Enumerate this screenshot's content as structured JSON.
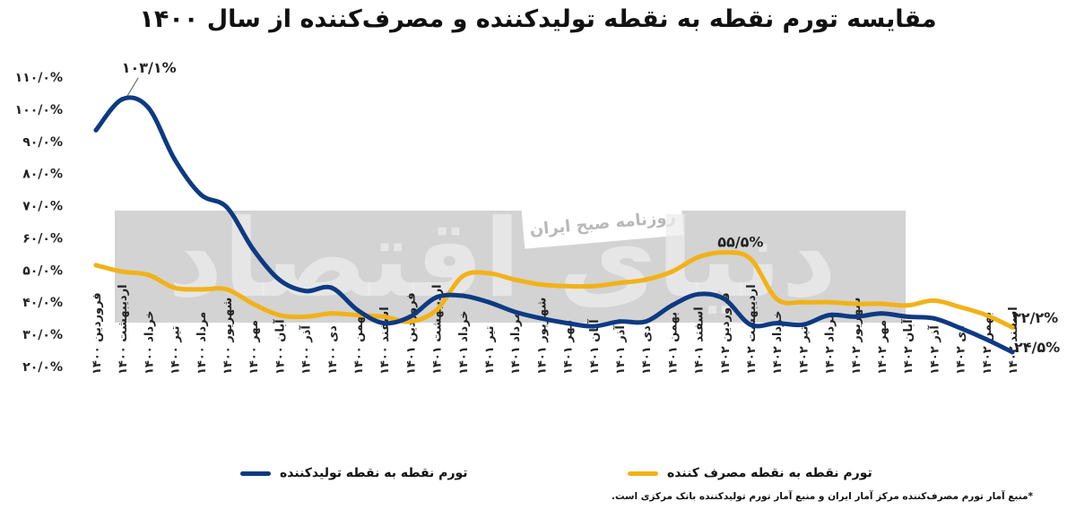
{
  "title": "مقایسه تورم نقطه به نقطه تولیدکننده و مصرف‌کننده از سال ۱۴۰۰",
  "watermark": {
    "badge": "روزنامه صبح ایران",
    "logo_text": "دنیای اقتصاد"
  },
  "source_note": "*منبع آمار تورم مصرف‌کننده مرکز آمار ایران و منبع آمار تورم تولیدکننده بانک مرکزی است.",
  "colors": {
    "producer": "#0d3a82",
    "consumer": "#f2b217",
    "watermark_band": "#d3d3d3",
    "watermark_text": "#ececec"
  },
  "chart_data": {
    "type": "line",
    "title": "مقایسه تورم نقطه به نقطه تولیدکننده و مصرف‌کننده از سال ۱۴۰۰",
    "ylim": [
      20,
      110
    ],
    "y_ticks": [
      "۲۰/۰%",
      "۳۰/۰%",
      "۴۰/۰%",
      "۵۰/۰%",
      "۶۰/۰%",
      "۷۰/۰%",
      "۸۰/۰%",
      "۹۰/۰%",
      "۱۰۰/۰%",
      "۱۱۰/۰%"
    ],
    "y_tick_values": [
      20,
      30,
      40,
      50,
      60,
      70,
      80,
      90,
      100,
      110
    ],
    "categories": [
      "فروردین ۱۴۰۰",
      "اردیبهشت ۱۴۰۰",
      "خرداد ۱۴۰۰",
      "تیر ۱۴۰۰",
      "مرداد ۱۴۰۰",
      "شهریور ۱۴۰۰",
      "مهر ۱۴۰۰",
      "آبان ۱۴۰۰",
      "آذر ۱۴۰۰",
      "دی ۱۴۰۰",
      "بهمن ۱۴۰۰",
      "اسفند ۱۴۰۰",
      "فروردین ۱۴۰۱",
      "اردیبهشت ۱۴۰۱",
      "خرداد ۱۴۰۱",
      "تیر ۱۴۰۱",
      "مرداد ۱۴۰۱",
      "شهریور ۱۴۰۱",
      "مهر ۱۴۰۱",
      "آبان ۱۴۰۱",
      "آذر ۱۴۰۱",
      "دی ۱۴۰۱",
      "بهمن ۱۴۰۱",
      "اسفند ۱۴۰۱",
      "فروردین ۱۴۰۲",
      "اردیبهشت ۱۴۰۲",
      "خرداد ۱۴۰۲",
      "تیر ۱۴۰۲",
      "مرداد ۱۴۰۲",
      "شهریور ۱۴۰۲",
      "مهر ۱۴۰۲",
      "آبان ۱۴۰۲",
      "آذر ۱۴۰۲",
      "دی ۱۴۰۲",
      "بهمن ۱۴۰۲",
      "اسفند ۱۴۰۲"
    ],
    "series": [
      {
        "name": "تورم نقطه به نقطه تولیدکننده",
        "key": "producer",
        "values": [
          93.5,
          103.1,
          100.5,
          84.5,
          73.5,
          69.5,
          56.5,
          47.0,
          43.5,
          44.5,
          37.5,
          33.5,
          35.5,
          41.5,
          42.0,
          40.0,
          37.0,
          35.0,
          33.5,
          32.5,
          34.0,
          34.0,
          39.0,
          42.5,
          41.0,
          33.0,
          33.5,
          33.0,
          36.0,
          35.5,
          36.5,
          35.5,
          35.0,
          32.0,
          28.5,
          24.5
        ]
      },
      {
        "name": "تورم نقطه به نقطه مصرف کننده",
        "key": "consumer",
        "values": [
          51.5,
          49.5,
          48.5,
          44.5,
          44.0,
          44.0,
          39.5,
          36.0,
          35.5,
          36.5,
          36.0,
          35.5,
          34.0,
          37.5,
          48.0,
          49.0,
          47.0,
          45.5,
          45.0,
          45.0,
          46.0,
          47.0,
          49.5,
          54.0,
          55.5,
          53.5,
          41.0,
          40.0,
          40.0,
          39.5,
          39.5,
          39.0,
          40.5,
          38.5,
          36.0,
          32.2
        ]
      }
    ],
    "annotations": [
      {
        "series": "producer",
        "index": 1,
        "label": "۱۰۳/۱%"
      },
      {
        "series": "consumer",
        "index": 24,
        "label": "۵۵/۵%"
      },
      {
        "series": "consumer",
        "index": 35,
        "label": "۳۲/۲%"
      },
      {
        "series": "producer",
        "index": 35,
        "label": "۲۴/۵%"
      }
    ],
    "legend": {
      "position": "bottom"
    },
    "grid": false
  }
}
